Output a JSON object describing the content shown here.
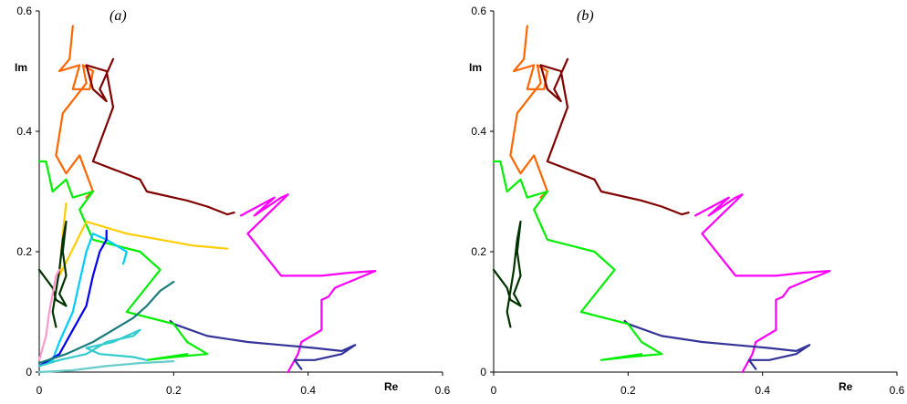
{
  "chart_data": [
    {
      "type": "line",
      "title": "(a)",
      "xlabel": "Re",
      "ylabel": "Im",
      "xlim": [
        0,
        0.6
      ],
      "ylim": [
        0,
        0.6
      ],
      "xticks": [
        "0",
        "0.2",
        "0.4",
        "0.6"
      ],
      "yticks": [
        "0",
        "0.2",
        "0.4",
        "0.6"
      ],
      "grid": false,
      "series": [
        {
          "color": "#ff6600",
          "points": [
            [
              0.05,
              0.575
            ],
            [
              0.045,
              0.52
            ],
            [
              0.03,
              0.5
            ],
            [
              0.06,
              0.51
            ],
            [
              0.05,
              0.47
            ],
            [
              0.075,
              0.47
            ],
            [
              0.08,
              0.5
            ],
            [
              0.065,
              0.51
            ],
            [
              0.07,
              0.48
            ],
            [
              0.035,
              0.43
            ],
            [
              0.025,
              0.36
            ],
            [
              0.04,
              0.33
            ],
            [
              0.06,
              0.36
            ],
            [
              0.08,
              0.3
            ],
            [
              0.07,
              0.29
            ]
          ]
        },
        {
          "color": "#800000",
          "points": [
            [
              0.11,
              0.52
            ],
            [
              0.09,
              0.47
            ],
            [
              0.1,
              0.45
            ],
            [
              0.08,
              0.47
            ],
            [
              0.07,
              0.51
            ],
            [
              0.1,
              0.5
            ],
            [
              0.11,
              0.44
            ],
            [
              0.08,
              0.35
            ],
            [
              0.15,
              0.32
            ],
            [
              0.16,
              0.3
            ],
            [
              0.22,
              0.285
            ],
            [
              0.25,
              0.275
            ],
            [
              0.28,
              0.262
            ],
            [
              0.29,
              0.265
            ]
          ]
        },
        {
          "color": "#ff00ff",
          "points": [
            [
              0.3,
              0.26
            ],
            [
              0.35,
              0.29
            ],
            [
              0.32,
              0.26
            ],
            [
              0.36,
              0.29
            ],
            [
              0.37,
              0.295
            ],
            [
              0.31,
              0.23
            ],
            [
              0.36,
              0.16
            ],
            [
              0.42,
              0.16
            ],
            [
              0.46,
              0.165
            ],
            [
              0.5,
              0.168
            ],
            [
              0.44,
              0.14
            ],
            [
              0.43,
              0.125
            ],
            [
              0.42,
              0.12
            ],
            [
              0.42,
              0.07
            ],
            [
              0.39,
              0.05
            ],
            [
              0.385,
              0.03
            ],
            [
              0.375,
              0.01
            ],
            [
              0.37,
              0
            ]
          ]
        },
        {
          "color": "#333399",
          "points": [
            [
              0.195,
              0.085
            ],
            [
              0.2,
              0.08
            ],
            [
              0.25,
              0.06
            ],
            [
              0.31,
              0.05
            ],
            [
              0.36,
              0.045
            ],
            [
              0.41,
              0.04
            ],
            [
              0.45,
              0.035
            ],
            [
              0.47,
              0.045
            ],
            [
              0.45,
              0.03
            ],
            [
              0.41,
              0.02
            ],
            [
              0.38,
              0.02
            ],
            [
              0.39,
              0.005
            ]
          ]
        },
        {
          "color": "#00ee00",
          "points": [
            [
              0,
              0.35
            ],
            [
              0.01,
              0.35
            ],
            [
              0.02,
              0.3
            ],
            [
              0.04,
              0.32
            ],
            [
              0.05,
              0.29
            ],
            [
              0.08,
              0.3
            ],
            [
              0.06,
              0.27
            ],
            [
              0.08,
              0.22
            ],
            [
              0.15,
              0.2
            ],
            [
              0.18,
              0.17
            ],
            [
              0.13,
              0.1
            ],
            [
              0.2,
              0.08
            ],
            [
              0.22,
              0.05
            ],
            [
              0.25,
              0.03
            ],
            [
              0.2,
              0.025
            ],
            [
              0.16,
              0.02
            ],
            [
              0.22,
              0.03
            ]
          ]
        },
        {
          "color": "#ffcc00",
          "points": [
            [
              0.04,
              0.28
            ],
            [
              0.035,
              0.23
            ],
            [
              0.03,
              0.16
            ],
            [
              0.07,
              0.25
            ],
            [
              0.1,
              0.24
            ],
            [
              0.13,
              0.23
            ],
            [
              0.18,
              0.22
            ],
            [
              0.23,
              0.21
            ],
            [
              0.28,
              0.205
            ]
          ]
        },
        {
          "color": "#003300",
          "points": [
            [
              0,
              0.17
            ],
            [
              0.02,
              0.14
            ],
            [
              0.025,
              0.12
            ],
            [
              0.04,
              0.11
            ],
            [
              0.03,
              0.13
            ],
            [
              0.04,
              0.16
            ],
            [
              0.035,
              0.2
            ],
            [
              0.04,
              0.25
            ],
            [
              0.035,
              0.22
            ],
            [
              0.03,
              0.17
            ],
            [
              0.02,
              0.1
            ],
            [
              0.025,
              0.075
            ]
          ]
        },
        {
          "color": "#00ccff",
          "points": [
            [
              0,
              0.01
            ],
            [
              0.02,
              0.02
            ],
            [
              0.03,
              0.05
            ],
            [
              0.05,
              0.1
            ],
            [
              0.06,
              0.15
            ],
            [
              0.07,
              0.2
            ],
            [
              0.08,
              0.23
            ],
            [
              0.1,
              0.22
            ],
            [
              0.13,
              0.2
            ],
            [
              0.125,
              0.18
            ]
          ]
        },
        {
          "color": "#0000ee",
          "points": [
            [
              0,
              0.01
            ],
            [
              0.03,
              0.03
            ],
            [
              0.05,
              0.07
            ],
            [
              0.07,
              0.11
            ],
            [
              0.08,
              0.16
            ],
            [
              0.09,
              0.2
            ],
            [
              0.1,
              0.22
            ],
            [
              0.1,
              0.235
            ]
          ]
        },
        {
          "color": "#33cccc",
          "points": [
            [
              0,
              0.01
            ],
            [
              0.03,
              0.02
            ],
            [
              0.07,
              0.03
            ],
            [
              0.1,
              0.05
            ],
            [
              0.14,
              0.06
            ],
            [
              0.15,
              0.07
            ],
            [
              0.11,
              0.05
            ],
            [
              0.07,
              0.04
            ],
            [
              0.09,
              0.03
            ],
            [
              0.14,
              0.025
            ],
            [
              0.16,
              0.02
            ]
          ]
        },
        {
          "color": "#1a7b7b",
          "points": [
            [
              0,
              0.015
            ],
            [
              0.04,
              0.03
            ],
            [
              0.08,
              0.05
            ],
            [
              0.11,
              0.07
            ],
            [
              0.14,
              0.09
            ],
            [
              0.16,
              0.11
            ],
            [
              0.18,
              0.135
            ],
            [
              0.2,
              0.15
            ]
          ]
        },
        {
          "color": "#ff99cc",
          "points": [
            [
              0,
              0.02
            ],
            [
              0.01,
              0.06
            ],
            [
              0.015,
              0.1
            ],
            [
              0.02,
              0.13
            ],
            [
              0.025,
              0.16
            ],
            [
              0.03,
              0.17
            ]
          ]
        },
        {
          "color": "#66cccc",
          "points": [
            [
              0,
              0
            ],
            [
              0.05,
              0.003
            ],
            [
              0.1,
              0.01
            ],
            [
              0.15,
              0.015
            ],
            [
              0.2,
              0.018
            ]
          ]
        }
      ]
    },
    {
      "type": "line",
      "title": "(b)",
      "xlabel": "Re",
      "ylabel": "Im",
      "xlim": [
        0,
        0.6
      ],
      "ylim": [
        0,
        0.6
      ],
      "xticks": [
        "0",
        "0.2",
        "0.4",
        "0.6"
      ],
      "yticks": [
        "0",
        "0.2",
        "0.4",
        "0.6"
      ],
      "grid": false,
      "series": [
        {
          "color": "#ff6600",
          "points": [
            [
              0.05,
              0.575
            ],
            [
              0.045,
              0.52
            ],
            [
              0.03,
              0.5
            ],
            [
              0.06,
              0.51
            ],
            [
              0.05,
              0.47
            ],
            [
              0.075,
              0.47
            ],
            [
              0.08,
              0.5
            ],
            [
              0.065,
              0.51
            ],
            [
              0.07,
              0.48
            ],
            [
              0.035,
              0.43
            ],
            [
              0.025,
              0.36
            ],
            [
              0.04,
              0.33
            ],
            [
              0.06,
              0.36
            ],
            [
              0.08,
              0.3
            ],
            [
              0.07,
              0.29
            ]
          ]
        },
        {
          "color": "#800000",
          "points": [
            [
              0.11,
              0.52
            ],
            [
              0.09,
              0.47
            ],
            [
              0.1,
              0.45
            ],
            [
              0.08,
              0.47
            ],
            [
              0.07,
              0.51
            ],
            [
              0.1,
              0.5
            ],
            [
              0.11,
              0.44
            ],
            [
              0.08,
              0.35
            ],
            [
              0.15,
              0.32
            ],
            [
              0.16,
              0.3
            ],
            [
              0.22,
              0.285
            ],
            [
              0.25,
              0.275
            ],
            [
              0.28,
              0.262
            ],
            [
              0.29,
              0.265
            ]
          ]
        },
        {
          "color": "#ff00ff",
          "points": [
            [
              0.3,
              0.26
            ],
            [
              0.35,
              0.29
            ],
            [
              0.32,
              0.26
            ],
            [
              0.36,
              0.29
            ],
            [
              0.37,
              0.295
            ],
            [
              0.31,
              0.23
            ],
            [
              0.36,
              0.16
            ],
            [
              0.42,
              0.16
            ],
            [
              0.46,
              0.165
            ],
            [
              0.5,
              0.168
            ],
            [
              0.44,
              0.14
            ],
            [
              0.43,
              0.125
            ],
            [
              0.42,
              0.12
            ],
            [
              0.42,
              0.07
            ],
            [
              0.39,
              0.05
            ],
            [
              0.385,
              0.03
            ],
            [
              0.375,
              0.01
            ],
            [
              0.37,
              0
            ]
          ]
        },
        {
          "color": "#333399",
          "points": [
            [
              0.195,
              0.085
            ],
            [
              0.2,
              0.08
            ],
            [
              0.25,
              0.06
            ],
            [
              0.31,
              0.05
            ],
            [
              0.36,
              0.045
            ],
            [
              0.41,
              0.04
            ],
            [
              0.45,
              0.035
            ],
            [
              0.47,
              0.045
            ],
            [
              0.45,
              0.03
            ],
            [
              0.41,
              0.02
            ],
            [
              0.38,
              0.02
            ],
            [
              0.39,
              0.005
            ]
          ]
        },
        {
          "color": "#00ee00",
          "points": [
            [
              0,
              0.35
            ],
            [
              0.01,
              0.35
            ],
            [
              0.02,
              0.3
            ],
            [
              0.04,
              0.32
            ],
            [
              0.05,
              0.29
            ],
            [
              0.08,
              0.3
            ],
            [
              0.06,
              0.27
            ],
            [
              0.08,
              0.22
            ],
            [
              0.15,
              0.2
            ],
            [
              0.18,
              0.17
            ],
            [
              0.13,
              0.1
            ],
            [
              0.2,
              0.08
            ],
            [
              0.22,
              0.05
            ],
            [
              0.25,
              0.03
            ],
            [
              0.2,
              0.025
            ],
            [
              0.16,
              0.02
            ],
            [
              0.22,
              0.03
            ]
          ]
        },
        {
          "color": "#003300",
          "points": [
            [
              0,
              0.17
            ],
            [
              0.02,
              0.14
            ],
            [
              0.025,
              0.12
            ],
            [
              0.04,
              0.11
            ],
            [
              0.03,
              0.13
            ],
            [
              0.04,
              0.16
            ],
            [
              0.035,
              0.2
            ],
            [
              0.04,
              0.25
            ],
            [
              0.035,
              0.22
            ],
            [
              0.03,
              0.17
            ],
            [
              0.02,
              0.1
            ],
            [
              0.025,
              0.075
            ]
          ]
        }
      ]
    }
  ]
}
